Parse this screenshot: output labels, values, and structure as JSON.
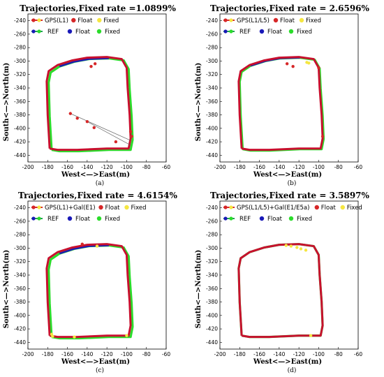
{
  "figure": {
    "colors": {
      "gps_float": "#d62728",
      "gps_fixed": "#f5e642",
      "ref_line": "#1f9d55",
      "ref_float": "#1a1ab8",
      "ref_fixed": "#2bdc2b",
      "trajectory": "#c8102e"
    }
  },
  "chart_data": [
    {
      "type": "scatter",
      "panel_label": "(a)",
      "title": "Trajectories,Fixed rate =1.0899%",
      "xlabel": "West<—>East(m)",
      "ylabel": "South<—>North(m)",
      "xlim": [
        -200,
        -60
      ],
      "ylim": [
        -450,
        -230
      ],
      "xticks": [
        -200,
        -180,
        -160,
        -140,
        -120,
        -100,
        -80,
        -60
      ],
      "yticks": [
        -240,
        -260,
        -280,
        -300,
        -320,
        -340,
        -360,
        -380,
        -400,
        -420,
        -440
      ],
      "legend": {
        "row1": {
          "series": "GPS(L1)",
          "float": "Float",
          "fixed": "Fixed"
        },
        "row2": {
          "series": "REF",
          "float": "Float",
          "fixed": "Fixed"
        }
      },
      "trajectory": [
        [
          -178,
          -430
        ],
        [
          -180,
          -380
        ],
        [
          -181,
          -330
        ],
        [
          -179,
          -315
        ],
        [
          -170,
          -306
        ],
        [
          -155,
          -299
        ],
        [
          -140,
          -295
        ],
        [
          -120,
          -294
        ],
        [
          -105,
          -297
        ],
        [
          -100,
          -310
        ],
        [
          -99,
          -340
        ],
        [
          -97,
          -380
        ],
        [
          -96,
          -415
        ],
        [
          -98,
          -430
        ],
        [
          -120,
          -430
        ],
        [
          -150,
          -432
        ],
        [
          -170,
          -432
        ],
        [
          -178,
          -430
        ]
      ],
      "outliers": [
        [
          -157,
          -378
        ],
        [
          -150,
          -385
        ],
        [
          -140,
          -390
        ],
        [
          -133,
          -399
        ],
        [
          -111,
          -420
        ],
        [
          -96,
          -405
        ],
        [
          -95,
          -412
        ],
        [
          -132,
          -304
        ],
        [
          -136,
          -308
        ]
      ],
      "fixed_points": [],
      "ref_offset": [
        2,
        -2
      ]
    },
    {
      "type": "scatter",
      "panel_label": "(b)",
      "title": "Trajectories,Fixed rate = 2.6596%",
      "xlabel": "West<—>East(m)",
      "ylabel": "South<—>North(m)",
      "xlim": [
        -200,
        -60
      ],
      "ylim": [
        -450,
        -230
      ],
      "xticks": [
        -200,
        -180,
        -160,
        -140,
        -120,
        -100,
        -80,
        -60
      ],
      "yticks": [
        -240,
        -260,
        -280,
        -300,
        -320,
        -340,
        -360,
        -380,
        -400,
        -420,
        -440
      ],
      "legend": {
        "row1": {
          "series": "GPS(L1/L5)",
          "float": "Float",
          "fixed": "Fixed"
        },
        "row2": {
          "series": "REF",
          "float": "Float",
          "fixed": "Fixed"
        }
      },
      "trajectory": [
        [
          -178,
          -430
        ],
        [
          -180,
          -380
        ],
        [
          -181,
          -330
        ],
        [
          -179,
          -315
        ],
        [
          -170,
          -306
        ],
        [
          -155,
          -299
        ],
        [
          -140,
          -295
        ],
        [
          -120,
          -294
        ],
        [
          -105,
          -297
        ],
        [
          -100,
          -310
        ],
        [
          -99,
          -340
        ],
        [
          -97,
          -380
        ],
        [
          -96,
          -415
        ],
        [
          -98,
          -430
        ],
        [
          -120,
          -430
        ],
        [
          -150,
          -432
        ],
        [
          -170,
          -432
        ],
        [
          -178,
          -430
        ]
      ],
      "outliers": [
        [
          -132,
          -304
        ],
        [
          -126,
          -308
        ],
        [
          -100,
          -310
        ],
        [
          -96,
          -412
        ]
      ],
      "fixed_points": [
        [
          -110,
          -303
        ],
        [
          -112,
          -302
        ]
      ],
      "ref_offset": [
        1,
        -1
      ]
    },
    {
      "type": "scatter",
      "panel_label": "(c)",
      "title": "Trajectories,Fixed rate = 4.6154%",
      "xlabel": "West<—>East(m)",
      "ylabel": "South<—>North(m)",
      "xlim": [
        -200,
        -60
      ],
      "ylim": [
        -450,
        -230
      ],
      "xticks": [
        -200,
        -180,
        -160,
        -140,
        -120,
        -100,
        -80,
        -60
      ],
      "yticks": [
        -240,
        -260,
        -280,
        -300,
        -320,
        -340,
        -360,
        -380,
        -400,
        -420,
        -440
      ],
      "legend": {
        "row1": {
          "series": "GPS(L1)+Gal(E1)",
          "float": "Float",
          "fixed": "Fixed"
        },
        "row2": {
          "series": "REF",
          "float": "Float",
          "fixed": "Fixed"
        }
      },
      "trajectory": [
        [
          -178,
          -430
        ],
        [
          -180,
          -380
        ],
        [
          -181,
          -330
        ],
        [
          -179,
          -315
        ],
        [
          -170,
          -306
        ],
        [
          -155,
          -299
        ],
        [
          -140,
          -295
        ],
        [
          -120,
          -294
        ],
        [
          -105,
          -297
        ],
        [
          -100,
          -310
        ],
        [
          -99,
          -340
        ],
        [
          -97,
          -380
        ],
        [
          -96,
          -415
        ],
        [
          -98,
          -430
        ],
        [
          -120,
          -430
        ],
        [
          -150,
          -432
        ],
        [
          -170,
          -432
        ],
        [
          -178,
          -430
        ]
      ],
      "outliers": [
        [
          -145,
          -294
        ]
      ],
      "fixed_points": [
        [
          -176,
          -428
        ],
        [
          -175,
          -431
        ],
        [
          -153,
          -432
        ],
        [
          -130,
          -297
        ],
        [
          -100,
          -430
        ]
      ],
      "ref_offset": [
        2,
        -2
      ]
    },
    {
      "type": "scatter",
      "panel_label": "(d)",
      "title": "Trajectories,Fixed rate = 3.5897%",
      "xlabel": "West<—>East(m)",
      "ylabel": "South<—>North(m)",
      "xlim": [
        -200,
        -60
      ],
      "ylim": [
        -450,
        -230
      ],
      "xticks": [
        -200,
        -180,
        -160,
        -140,
        -120,
        -100,
        -80,
        -60
      ],
      "yticks": [
        -240,
        -260,
        -280,
        -300,
        -320,
        -340,
        -360,
        -380,
        -400,
        -420,
        -440
      ],
      "legend": {
        "row1": {
          "series": "GPS(L1/L5)+Gal(E1/E5a)",
          "float": "Float",
          "fixed": "Fixed"
        },
        "row2": {
          "series": "REF",
          "float": "Float",
          "fixed": "Fixed"
        }
      },
      "trajectory": [
        [
          -178,
          -430
        ],
        [
          -180,
          -380
        ],
        [
          -181,
          -330
        ],
        [
          -179,
          -315
        ],
        [
          -170,
          -306
        ],
        [
          -155,
          -299
        ],
        [
          -140,
          -295
        ],
        [
          -120,
          -294
        ],
        [
          -105,
          -297
        ],
        [
          -100,
          -310
        ],
        [
          -99,
          -340
        ],
        [
          -97,
          -380
        ],
        [
          -96,
          -415
        ],
        [
          -98,
          -430
        ],
        [
          -120,
          -430
        ],
        [
          -150,
          -432
        ],
        [
          -170,
          -432
        ],
        [
          -178,
          -430
        ]
      ],
      "outliers": [],
      "fixed_points": [
        [
          -133,
          -296
        ],
        [
          -128,
          -297
        ],
        [
          -122,
          -299
        ],
        [
          -118,
          -301
        ],
        [
          -113,
          -303
        ],
        [
          -108,
          -430
        ]
      ],
      "ref_offset": [
        0,
        0
      ]
    }
  ]
}
